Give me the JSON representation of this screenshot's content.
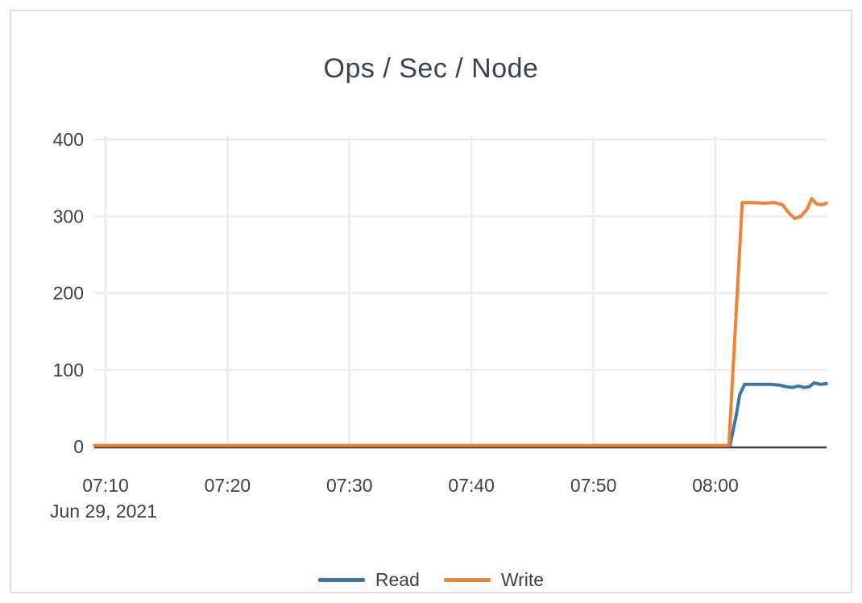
{
  "card": {
    "background": "#ffffff",
    "border_color": "#dedede"
  },
  "chart_data": {
    "type": "line",
    "title": "Ops / Sec / Node",
    "x_axis": {
      "label_date": "Jun 29, 2021",
      "tick_labels": [
        "07:10",
        "07:20",
        "07:30",
        "07:40",
        "07:50",
        "08:00"
      ],
      "tick_minutes": [
        10,
        20,
        30,
        40,
        50,
        60
      ],
      "minutes_reference": "minutes after 07:00",
      "visible_range_minutes": [
        9.1,
        69.1
      ]
    },
    "y_axis": {
      "tick_labels": [
        "0",
        "100",
        "200",
        "300",
        "400"
      ],
      "tick_values": [
        0,
        100,
        200,
        300,
        400
      ],
      "range": [
        0,
        400
      ]
    },
    "grid": true,
    "legend": {
      "position": "bottom-center",
      "entries": [
        {
          "label": "Read",
          "color": "#3a76a9"
        },
        {
          "label": "Write",
          "color": "#ee8434"
        }
      ]
    },
    "series": [
      {
        "name": "Read",
        "color": "#3a76a9",
        "points": [
          [
            9.1,
            0
          ],
          [
            20,
            0
          ],
          [
            30,
            0
          ],
          [
            40,
            0
          ],
          [
            50,
            0
          ],
          [
            60,
            0
          ],
          [
            61.2,
            0
          ],
          [
            61.7,
            40
          ],
          [
            62.0,
            68
          ],
          [
            62.4,
            81
          ],
          [
            63.5,
            81
          ],
          [
            64.5,
            81
          ],
          [
            65.3,
            80
          ],
          [
            65.8,
            78
          ],
          [
            66.3,
            77
          ],
          [
            66.8,
            79
          ],
          [
            67.3,
            77
          ],
          [
            67.7,
            78
          ],
          [
            68.1,
            83
          ],
          [
            68.6,
            81
          ],
          [
            69.1,
            82
          ]
        ]
      },
      {
        "name": "Write",
        "color": "#ee8434",
        "points": [
          [
            9.1,
            0
          ],
          [
            20,
            0
          ],
          [
            30,
            0
          ],
          [
            40,
            0
          ],
          [
            50,
            0
          ],
          [
            60,
            0
          ],
          [
            61.1,
            0
          ],
          [
            62.2,
            318
          ],
          [
            63.0,
            318
          ],
          [
            64.0,
            317
          ],
          [
            64.8,
            318
          ],
          [
            65.5,
            315
          ],
          [
            66.0,
            305
          ],
          [
            66.5,
            297
          ],
          [
            67.0,
            300
          ],
          [
            67.5,
            309
          ],
          [
            67.9,
            323
          ],
          [
            68.3,
            316
          ],
          [
            68.7,
            315
          ],
          [
            69.1,
            317
          ]
        ]
      }
    ],
    "style": {
      "gridline_color": "#ececec",
      "axis_line_color": "#3b3e42",
      "tick_label_color": "#3d4045",
      "title_color": "#3f4348"
    }
  }
}
